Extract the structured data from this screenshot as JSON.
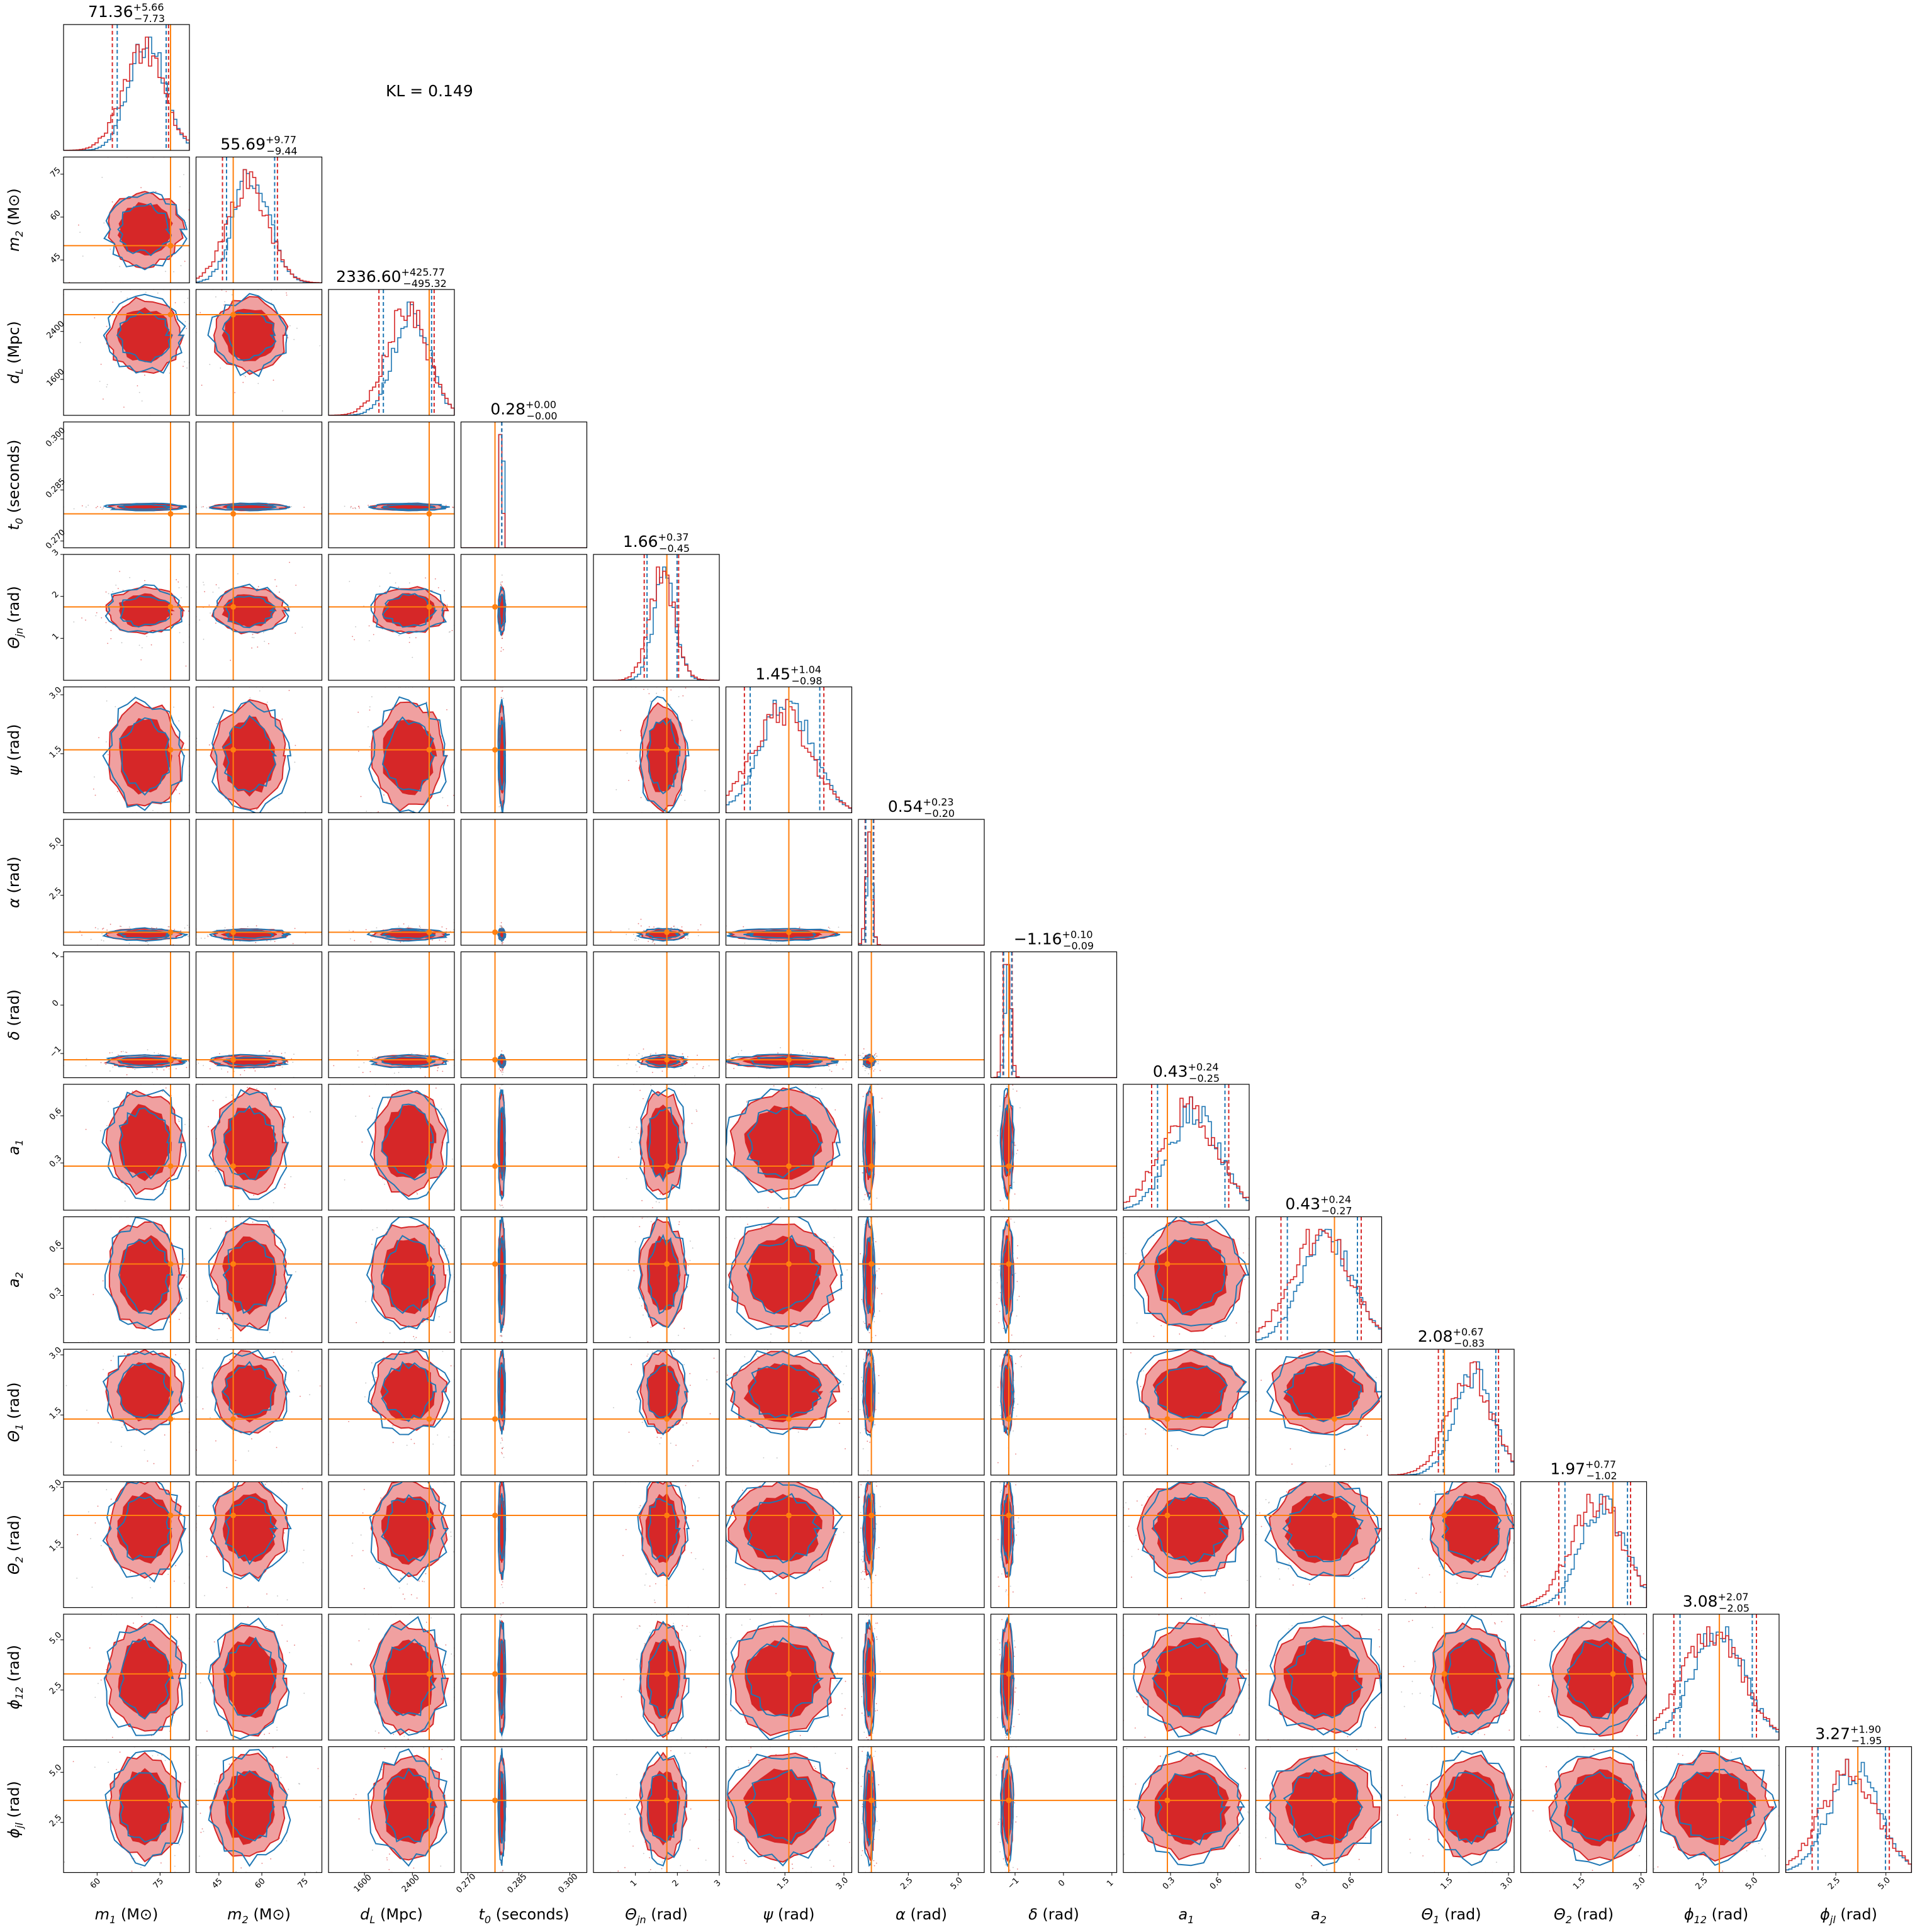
{
  "colors": {
    "posterior_a": "#d62728",
    "posterior_b": "#1f77b4",
    "truth": "#ff7f0e",
    "fill_inner": "#d62728",
    "fill_outer": "#f0a0a0"
  },
  "kl_text": "KL = 0.149",
  "chart_data": {
    "type": "corner",
    "grid": false,
    "legend": "none",
    "annotation": "KL = 0.149",
    "parameters": [
      {
        "key": "m1",
        "label_main": "m",
        "label_sub": "1",
        "label_rest": " (M⊙)",
        "label_text": "m1 (M⊙)",
        "range": [
          52,
          82
        ],
        "truth": 77.5,
        "median": 71.36,
        "plus": "+5.66",
        "minus": "−7.73",
        "title_value": "71.36",
        "ticks": [
          60,
          75
        ],
        "tick_labels": [
          "60",
          "75"
        ]
      },
      {
        "key": "m2",
        "label_main": "m",
        "label_sub": "2",
        "label_rest": " (M⊙)",
        "label_text": "m2 (M⊙)",
        "range": [
          37,
          81
        ],
        "truth": 50.0,
        "median": 55.69,
        "plus": "+9.77",
        "minus": "−9.44",
        "title_value": "55.69",
        "ticks": [
          45,
          60,
          75
        ],
        "tick_labels": [
          "45",
          "60",
          "75"
        ]
      },
      {
        "key": "dL",
        "label_main": "d",
        "label_sub": "L",
        "label_rest": " (Mpc)",
        "label_text": "dL (Mpc)",
        "range": [
          1000,
          3100
        ],
        "truth": 2680,
        "median": 2336.6,
        "plus": "+425.77",
        "minus": "−495.32",
        "title_value": "2336.60",
        "ticks": [
          1600,
          2400
        ],
        "tick_labels": [
          "1600",
          "2400"
        ]
      },
      {
        "key": "t0",
        "label_main": "t",
        "label_sub": "0",
        "label_rest": " (seconds)",
        "label_text": "t0 (seconds)",
        "range": [
          0.268,
          0.305
        ],
        "truth": 0.278,
        "median": 0.28,
        "plus": "+0.00",
        "minus": "−0.00",
        "title_value": "0.28",
        "ticks": [
          0.27,
          0.285,
          0.3
        ],
        "tick_labels": [
          "0.270",
          "0.285",
          "0.300"
        ]
      },
      {
        "key": "thetajn",
        "label_main": "Θ",
        "label_sub": "jn",
        "label_rest": " (rad)",
        "label_text": "Θjn (rad)",
        "range": [
          0,
          3
        ],
        "truth": 1.75,
        "median": 1.66,
        "plus": "+0.37",
        "minus": "−0.45",
        "title_value": "1.66",
        "ticks": [
          1,
          2,
          3
        ],
        "tick_labels": [
          "1",
          "2",
          "3"
        ]
      },
      {
        "key": "psi",
        "label_main": "ψ",
        "label_sub": "",
        "label_rest": " (rad)",
        "label_text": "ψ (rad)",
        "range": [
          0,
          3.2
        ],
        "truth": 1.6,
        "median": 1.45,
        "plus": "+1.04",
        "minus": "−0.98",
        "title_value": "1.45",
        "ticks": [
          1.5,
          3.0
        ],
        "tick_labels": [
          "1.5",
          "3.0"
        ]
      },
      {
        "key": "alpha",
        "label_main": "α",
        "label_sub": "",
        "label_rest": " (rad)",
        "label_text": "α (rad)",
        "range": [
          0,
          6.3
        ],
        "truth": 0.65,
        "median": 0.54,
        "plus": "+0.23",
        "minus": "−0.20",
        "title_value": "0.54",
        "ticks": [
          2.5,
          5.0
        ],
        "tick_labels": [
          "2.5",
          "5.0"
        ]
      },
      {
        "key": "delta",
        "label_main": "δ",
        "label_sub": "",
        "label_rest": " (rad)",
        "label_text": "δ (rad)",
        "range": [
          -1.5,
          1.1
        ],
        "truth": -1.13,
        "median": -1.16,
        "plus": "+0.10",
        "minus": "−0.09",
        "title_value": "−1.16",
        "ticks": [
          -1,
          0,
          1
        ],
        "tick_labels": [
          "−1",
          "0",
          "1"
        ]
      },
      {
        "key": "a1",
        "label_main": "a",
        "label_sub": "1",
        "label_rest": "",
        "label_text": "a1",
        "range": [
          0,
          0.8
        ],
        "truth": 0.28,
        "median": 0.43,
        "plus": "+0.24",
        "minus": "−0.25",
        "title_value": "0.43",
        "ticks": [
          0.3,
          0.6
        ],
        "tick_labels": [
          "0.3",
          "0.6"
        ]
      },
      {
        "key": "a2",
        "label_main": "a",
        "label_sub": "2",
        "label_rest": "",
        "label_text": "a2",
        "range": [
          0,
          0.8
        ],
        "truth": 0.5,
        "median": 0.43,
        "plus": "+0.24",
        "minus": "−0.27",
        "title_value": "0.43",
        "ticks": [
          0.3,
          0.6
        ],
        "tick_labels": [
          "0.3",
          "0.6"
        ]
      },
      {
        "key": "theta1",
        "label_main": "Θ",
        "label_sub": "1",
        "label_rest": " (rad)",
        "label_text": "Θ1 (rad)",
        "range": [
          0,
          3.14
        ],
        "truth": 1.4,
        "median": 2.08,
        "plus": "+0.67",
        "minus": "−0.83",
        "title_value": "2.08",
        "ticks": [
          1.5,
          3.0
        ],
        "tick_labels": [
          "1.5",
          "3.0"
        ]
      },
      {
        "key": "theta2",
        "label_main": "Θ",
        "label_sub": "2",
        "label_rest": " (rad)",
        "label_text": "Θ2 (rad)",
        "range": [
          0,
          3.14
        ],
        "truth": 2.3,
        "median": 1.97,
        "plus": "+0.77",
        "minus": "−1.02",
        "title_value": "1.97",
        "ticks": [
          1.5,
          3.0
        ],
        "tick_labels": [
          "1.5",
          "3.0"
        ]
      },
      {
        "key": "phi12",
        "label_main": "ϕ",
        "label_sub": "12",
        "label_rest": " (rad)",
        "label_text": "ϕ12 (rad)",
        "range": [
          0,
          6.28
        ],
        "truth": 3.3,
        "median": 3.08,
        "plus": "+2.07",
        "minus": "−2.05",
        "title_value": "3.08",
        "ticks": [
          2.5,
          5.0
        ],
        "tick_labels": [
          "2.5",
          "5.0"
        ]
      },
      {
        "key": "phijl",
        "label_main": "ϕ",
        "label_sub": "jl",
        "label_rest": " (rad)",
        "label_text": "ϕjl (rad)",
        "range": [
          0,
          6.28
        ],
        "truth": 3.6,
        "median": 3.27,
        "plus": "+1.90",
        "minus": "−1.95",
        "title_value": "3.27",
        "ticks": [
          2.5,
          5.0
        ],
        "tick_labels": [
          "2.5",
          "5.0"
        ]
      }
    ]
  }
}
